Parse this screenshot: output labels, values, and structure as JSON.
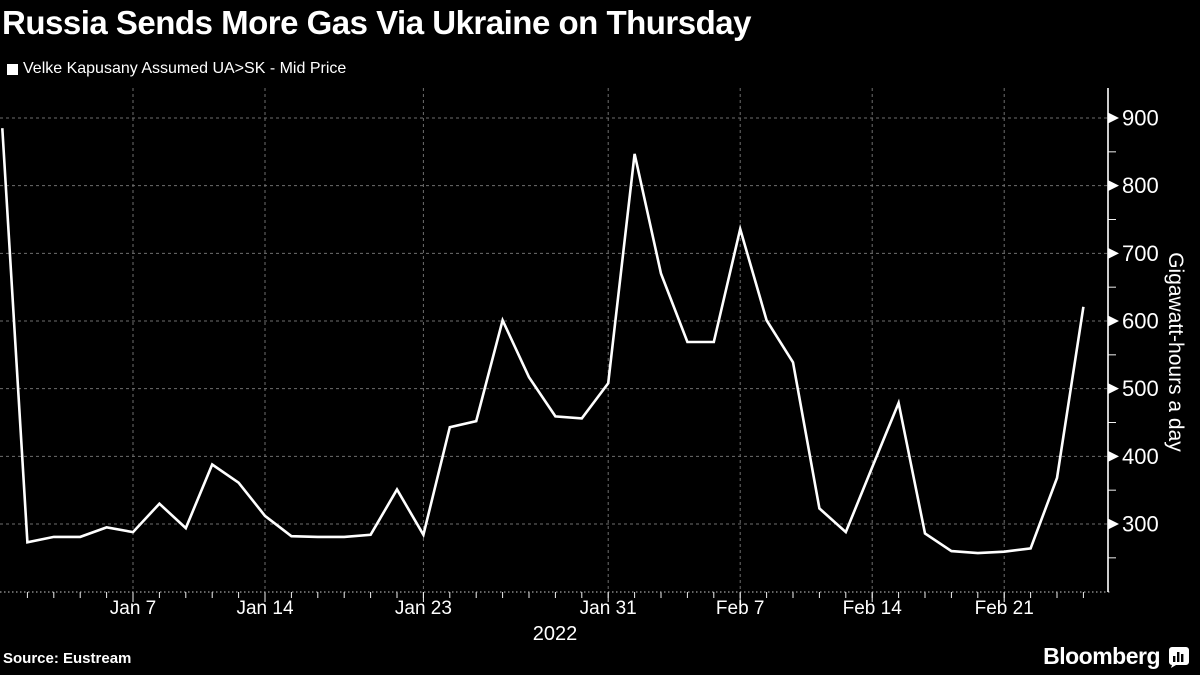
{
  "title": "Russia Sends More Gas Via Ukraine on Thursday",
  "legend": {
    "label": "Velke Kapusany Assumed UA>SK - Mid Price"
  },
  "y_axis": {
    "title": "Gigawatt-hours a day",
    "tick_values": [
      900,
      800,
      700,
      600,
      500,
      400,
      300
    ],
    "minor_tick_values": [
      850,
      750,
      650,
      550,
      450,
      350,
      250
    ]
  },
  "x_axis": {
    "year": "2022",
    "ticks": [
      {
        "label": "Jan 7",
        "slot": 4
      },
      {
        "label": "Jan 14",
        "slot": 9
      },
      {
        "label": "Jan 23",
        "slot": 15
      },
      {
        "label": "Jan 31",
        "slot": 22
      },
      {
        "label": "Feb 7",
        "slot": 27
      },
      {
        "label": "Feb 14",
        "slot": 32
      },
      {
        "label": "Feb 21",
        "slot": 37
      }
    ]
  },
  "footer": {
    "source": "Source: Eustream",
    "brand": "Bloomberg"
  },
  "colors": {
    "background": "#000000",
    "line": "#ffffff",
    "grid": "#6e6e6e",
    "text": "#ffffff"
  },
  "chart_data": {
    "type": "line",
    "title": "Russia Sends More Gas Via Ukraine on Thursday",
    "series_name": "Velke Kapusany Assumed UA>SK - Mid Price",
    "ylabel": "Gigawatt-hours a day",
    "ylim": [
      205,
      950
    ],
    "grid": "dashed",
    "legend_position": "top-left",
    "x_note": "Daily assumed flows, weekends without data omitted from axis",
    "points": [
      {
        "date": "Dec 31",
        "value": 885,
        "slot": -0.95
      },
      {
        "date": "Jan 3",
        "value": 273
      },
      {
        "date": "Jan 4",
        "value": 281
      },
      {
        "date": "Jan 5",
        "value": 281
      },
      {
        "date": "Jan 6",
        "value": 295
      },
      {
        "date": "Jan 7",
        "value": 288
      },
      {
        "date": "Jan 10",
        "value": 330
      },
      {
        "date": "Jan 11",
        "value": 294
      },
      {
        "date": "Jan 12",
        "value": 388
      },
      {
        "date": "Jan 13",
        "value": 361
      },
      {
        "date": "Jan 14",
        "value": 312
      },
      {
        "date": "Jan 17",
        "value": 282
      },
      {
        "date": "Jan 18",
        "value": 281
      },
      {
        "date": "Jan 19",
        "value": 281
      },
      {
        "date": "Jan 20",
        "value": 284
      },
      {
        "date": "Jan 21",
        "value": 351
      },
      {
        "date": "Jan 24",
        "value": 284
      },
      {
        "date": "Jan 25",
        "value": 443
      },
      {
        "date": "Jan 26",
        "value": 452
      },
      {
        "date": "Jan 27",
        "value": 601
      },
      {
        "date": "Jan 28",
        "value": 517
      },
      {
        "date": "Jan 29",
        "value": 459
      },
      {
        "date": "Jan 30",
        "value": 456
      },
      {
        "date": "Jan 31",
        "value": 508
      },
      {
        "date": "Feb 1",
        "value": 847
      },
      {
        "date": "Feb 2",
        "value": 670
      },
      {
        "date": "Feb 3",
        "value": 569
      },
      {
        "date": "Feb 4",
        "value": 569
      },
      {
        "date": "Feb 7",
        "value": 736
      },
      {
        "date": "Feb 8",
        "value": 601
      },
      {
        "date": "Feb 9",
        "value": 539
      },
      {
        "date": "Feb 10",
        "value": 323
      },
      {
        "date": "Feb 11",
        "value": 288
      },
      {
        "date": "Feb 14",
        "value": 384
      },
      {
        "date": "Feb 15",
        "value": 479
      },
      {
        "date": "Feb 16",
        "value": 286
      },
      {
        "date": "Feb 17",
        "value": 260
      },
      {
        "date": "Feb 18",
        "value": 257
      },
      {
        "date": "Feb 21",
        "value": 259
      },
      {
        "date": "Feb 22",
        "value": 264
      },
      {
        "date": "Feb 23",
        "value": 368
      },
      {
        "date": "Feb 24",
        "value": 621
      }
    ]
  }
}
